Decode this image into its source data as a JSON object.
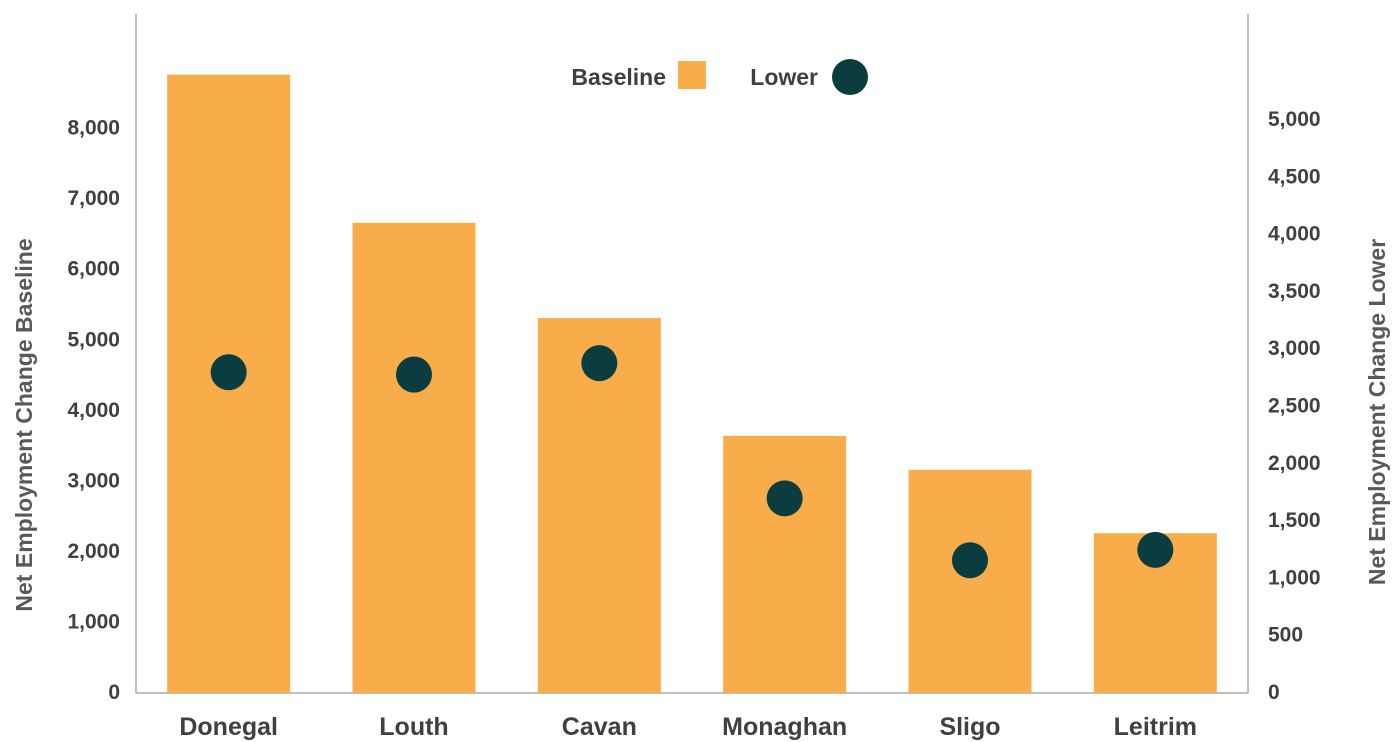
{
  "chart_data": {
    "type": "bar",
    "categories": [
      "Donegal",
      "Louth",
      "Cavan",
      "Monaghan",
      "Sligo",
      "Leitrim"
    ],
    "series": [
      {
        "name": "Baseline",
        "type": "bar",
        "axis": "left",
        "color": "#F8AC4A",
        "values": [
          8750,
          6650,
          5300,
          3630,
          3150,
          2250
        ]
      },
      {
        "name": "Lower",
        "type": "scatter",
        "axis": "right",
        "color": "#0B3D40",
        "values": [
          2790,
          2770,
          2870,
          1690,
          1150,
          1240
        ]
      }
    ],
    "y_left": {
      "label": "Net Employment Change Baseline",
      "min": 0,
      "max": 8800,
      "ticks": [
        0,
        1000,
        2000,
        3000,
        4000,
        5000,
        6000,
        7000,
        8000
      ],
      "tick_labels": [
        "0",
        "1,000",
        "2,000",
        "3,000",
        "4,000",
        "5,000",
        "6,000",
        "7,000",
        "8,000"
      ]
    },
    "y_right": {
      "label": "Net Employment Change Lower",
      "min": 0,
      "max": 5500,
      "ticks": [
        0,
        500,
        1000,
        1500,
        2000,
        2500,
        3000,
        3500,
        4000,
        4500,
        5000
      ],
      "tick_labels": [
        "0",
        "500",
        "1,000",
        "1,500",
        "2,000",
        "2,500",
        "3,000",
        "3,500",
        "4,000",
        "4,500",
        "5,000"
      ]
    },
    "legend": {
      "position": "top-center",
      "items": [
        {
          "label": "Baseline",
          "marker": "square"
        },
        {
          "label": "Lower",
          "marker": "circle"
        }
      ]
    },
    "grid": false,
    "colors": {
      "axis_line": "#BFBFBF",
      "text": "#404040",
      "axis_title": "#595959"
    }
  }
}
